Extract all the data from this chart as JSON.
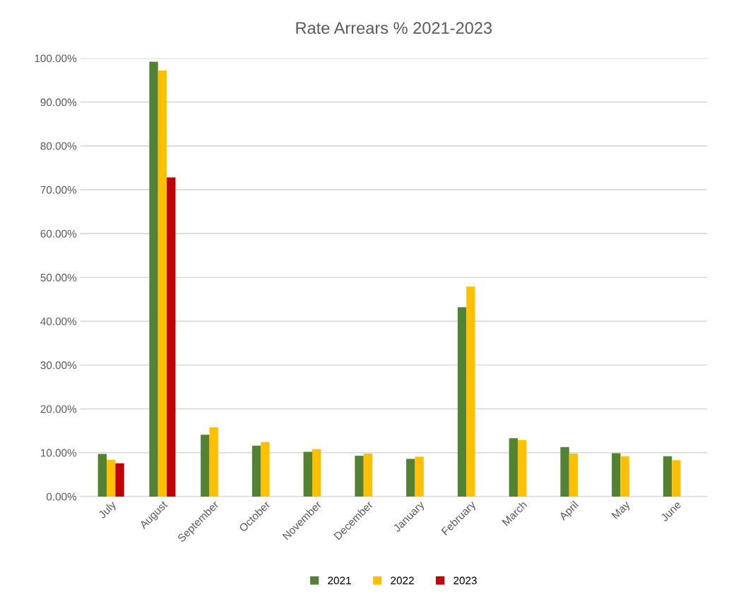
{
  "chart_data": {
    "type": "bar",
    "title": "Rate Arrears % 2021-2023",
    "categories": [
      "July",
      "August",
      "September",
      "October",
      "November",
      "December",
      "January",
      "February",
      "March",
      "April",
      "May",
      "June"
    ],
    "series": [
      {
        "name": "2021",
        "color": "#548235",
        "values": [
          9.7,
          99.2,
          14.1,
          11.6,
          10.2,
          9.3,
          8.6,
          43.2,
          13.3,
          11.3,
          9.9,
          9.2
        ]
      },
      {
        "name": "2022",
        "color": "#ffc000",
        "values": [
          8.4,
          97.2,
          15.8,
          12.4,
          10.8,
          9.8,
          9.1,
          47.9,
          12.9,
          9.8,
          9.2,
          8.3
        ]
      },
      {
        "name": "2023",
        "color": "#c00000",
        "values": [
          7.6,
          72.8,
          null,
          null,
          null,
          null,
          null,
          null,
          null,
          null,
          null,
          null
        ]
      }
    ],
    "ylim": [
      0,
      100
    ],
    "yticks": [
      {
        "value": 0,
        "label": "0.00%"
      },
      {
        "value": 10,
        "label": "10.00%"
      },
      {
        "value": 20,
        "label": "20.00%"
      },
      {
        "value": 30,
        "label": "30.00%"
      },
      {
        "value": 40,
        "label": "40.00%"
      },
      {
        "value": 50,
        "label": "50.00%"
      },
      {
        "value": 60,
        "label": "60.00%"
      },
      {
        "value": 70,
        "label": "70.00%"
      },
      {
        "value": 80,
        "label": "80.00%"
      },
      {
        "value": 90,
        "label": "90.00%"
      },
      {
        "value": 100,
        "label": "100.00%"
      }
    ],
    "grid": "y",
    "legend": "bottom"
  }
}
